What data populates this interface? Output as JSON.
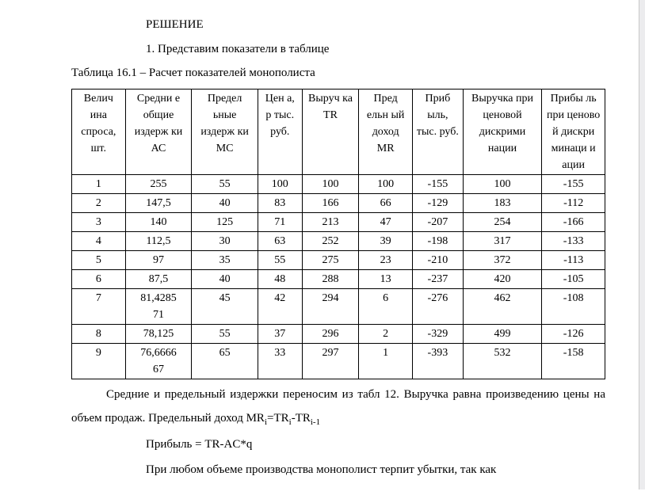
{
  "header": "РЕШЕНИЕ",
  "listItem": "1. Представим показатели в таблице",
  "tableCaption": "Таблица 16.1 – Расчет показателей монополиста",
  "table": {
    "headers": [
      "Велич ина спроса, шт.",
      "Средни е общие издерж ки АС",
      "Предел ьные издерж ки МС",
      "Цен а, р тыс. руб.",
      "Выруч ка TR",
      "Пред ельн ый доход MR",
      "Приб ыль, тыс. руб.",
      "Выручка при ценовой дискрими нации",
      "Прибы ль при ценово й дискри минаци и ации"
    ],
    "rows": [
      [
        "1",
        "255",
        "55",
        "100",
        "100",
        "100",
        "-155",
        "100",
        "-155"
      ],
      [
        "2",
        "147,5",
        "40",
        "83",
        "166",
        "66",
        "-129",
        "183",
        "-112"
      ],
      [
        "3",
        "140",
        "125",
        "71",
        "213",
        "47",
        "-207",
        "254",
        "-166"
      ],
      [
        "4",
        "112,5",
        "30",
        "63",
        "252",
        "39",
        "-198",
        "317",
        "-133"
      ],
      [
        "5",
        "97",
        "35",
        "55",
        "275",
        "23",
        "-210",
        "372",
        "-113"
      ],
      [
        "6",
        "87,5",
        "40",
        "48",
        "288",
        "13",
        "-237",
        "420",
        "-105"
      ],
      [
        "7",
        "81,4285 71",
        "45",
        "42",
        "294",
        "6",
        "-276",
        "462",
        "-108"
      ],
      [
        "8",
        "78,125",
        "55",
        "37",
        "296",
        "2",
        "-329",
        "499",
        "-126"
      ],
      [
        "9",
        "76,6666 67",
        "65",
        "33",
        "297",
        "1",
        "-393",
        "532",
        "-158"
      ]
    ]
  },
  "paragraph1Part1": "Средние и предельный издержки переносим из табл 12. Выручка равна произведению цены на объем продаж. Предельный доход MR",
  "paragraph1Sub1": "i",
  "paragraph1Part2": "=TR",
  "paragraph1Sub2": "i",
  "paragraph1Part3": "-TR",
  "paragraph1Sub3": "i-1",
  "formula1": "Прибыль = TR-AC*q",
  "paragraph2": "При любом объеме производства монополист терпит убытки, так как",
  "styling": {
    "fontFamily": "Times New Roman",
    "bodyFontSize": 15,
    "tableFontSize": 14,
    "textColor": "#000000",
    "backgroundColor": "#ffffff",
    "borderColor": "#000000",
    "pageEdgeColor": "#ececee",
    "lineHeight": 1.5,
    "bodyLineHeight": 2.0
  }
}
